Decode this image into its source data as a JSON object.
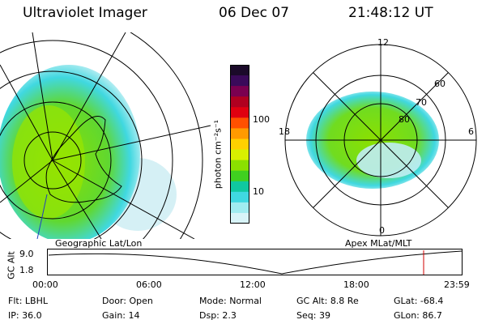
{
  "header": {
    "instrument": "Ultraviolet Imager",
    "date": "06 Dec 07",
    "time": "21:48:12 UT"
  },
  "left_panel": {
    "caption": "Geographic Lat/Lon"
  },
  "right_panel": {
    "caption": "Apex MLat/MLT",
    "mlt_labels": {
      "top": "12",
      "left": "18",
      "right": "6",
      "bottom": "0"
    },
    "lat_labels": [
      "60",
      "70",
      "80"
    ]
  },
  "colorbar": {
    "unit": "photon cm⁻²s⁻¹",
    "ticks": [
      "100",
      "10"
    ],
    "colors": [
      "#1b0a2a",
      "#3a0a5a",
      "#7a0050",
      "#b00020",
      "#e00010",
      "#ff5000",
      "#ff9a00",
      "#ffd000",
      "#d8f000",
      "#8be000",
      "#40d020",
      "#10c8a0",
      "#40d8e0",
      "#a0ecf0",
      "#d8f4f8"
    ]
  },
  "altitude_plot": {
    "ylabel": "GC Alt",
    "yticks": [
      "9.0",
      "1.8"
    ],
    "xticks": [
      "00:00",
      "06:00",
      "12:00",
      "18:00",
      "23:59"
    ]
  },
  "footer": {
    "row1": [
      {
        "key": "Flt:",
        "val": "LBHL"
      },
      {
        "key": "Door:",
        "val": "Open"
      },
      {
        "key": "Mode:",
        "val": "Normal"
      },
      {
        "key": "GC Alt:",
        "val": "8.8 Re"
      },
      {
        "key": "GLat:",
        "val": "-68.4"
      }
    ],
    "row2": [
      {
        "key": "IP:",
        "val": "36.0"
      },
      {
        "key": "Gain:",
        "val": "14"
      },
      {
        "key": "Dsp:",
        "val": "2.3"
      },
      {
        "key": "Seq:",
        "val": "39"
      },
      {
        "key": "GLon:",
        "val": "86.7"
      }
    ]
  }
}
